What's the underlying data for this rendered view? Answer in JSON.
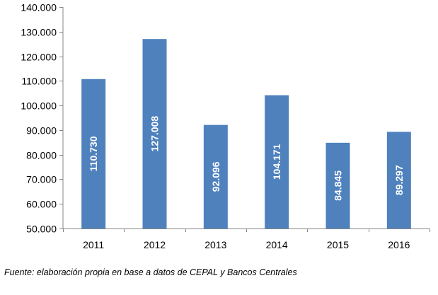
{
  "chart_data": {
    "type": "bar",
    "title": "",
    "xlabel": "",
    "ylabel": "",
    "categories": [
      "2011",
      "2012",
      "2013",
      "2014",
      "2015",
      "2016"
    ],
    "values": [
      110730,
      127008,
      92096,
      104171,
      84845,
      89297
    ],
    "value_labels": [
      "110.730",
      "127.008",
      "92.096",
      "104.171",
      "84.845",
      "89.297"
    ],
    "ylim": [
      50000,
      140000
    ],
    "yticks": [
      50000,
      60000,
      70000,
      80000,
      90000,
      100000,
      110000,
      120000,
      130000,
      140000
    ],
    "ytick_labels": [
      "50.000",
      "60.000",
      "70.000",
      "80.000",
      "90.000",
      "100.000",
      "110.000",
      "120.000",
      "130.000",
      "140.000"
    ],
    "grid": false,
    "legend": "none",
    "bar_color": "#4f81bd",
    "axis_color": "#868686",
    "data_label_color": "#ffffff"
  },
  "source_note": "Fuente: elaboración propia en base a datos de CEPAL y Bancos Centrales"
}
